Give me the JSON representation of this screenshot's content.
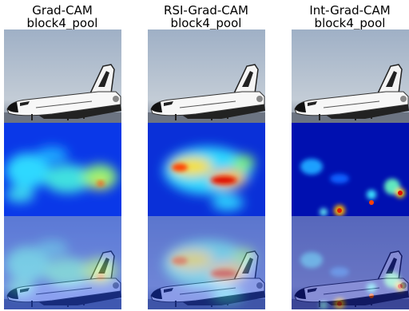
{
  "columns": [
    {
      "title": "Grad-CAM",
      "subtitle": "block4_pool"
    },
    {
      "title": "RSI-Grad-CAM",
      "subtitle": "block4_pool"
    },
    {
      "title": "Int-Grad-CAM",
      "subtitle": "block4_pool"
    }
  ]
}
